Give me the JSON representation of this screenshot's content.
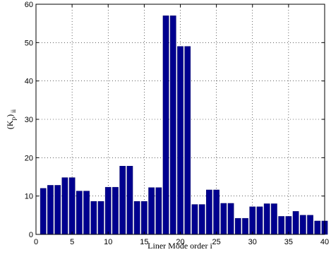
{
  "chart_data": {
    "type": "bar",
    "x": [
      1,
      2,
      3,
      4,
      5,
      6,
      7,
      8,
      9,
      10,
      11,
      12,
      13,
      14,
      15,
      16,
      17,
      18,
      19,
      20,
      21,
      22,
      23,
      24,
      25,
      26,
      27,
      28,
      29,
      30,
      31,
      32,
      33,
      34,
      35,
      36,
      37,
      38,
      39,
      40
    ],
    "values": [
      12,
      12.8,
      12.8,
      14.8,
      14.8,
      11.3,
      11.3,
      8.6,
      8.6,
      12.3,
      12.3,
      17.8,
      17.8,
      8.6,
      8.6,
      12.2,
      12.2,
      57,
      57,
      49,
      49,
      7.8,
      7.8,
      11.6,
      11.6,
      8.1,
      8.1,
      4.2,
      4.2,
      7.2,
      7.2,
      8,
      8,
      4.7,
      4.7,
      6,
      5,
      5,
      3.5,
      3.5
    ],
    "xlabel": "Liner Mode order i",
    "ylabel": "(K_p)_ii",
    "ylabel_display": {
      "base": "(K",
      "sub1": "p",
      "mid": ")",
      "sub2": "ii"
    },
    "xlim": [
      0,
      40
    ],
    "ylim": [
      0,
      60
    ],
    "xticks": [
      0,
      5,
      10,
      15,
      20,
      25,
      30,
      35,
      40
    ],
    "yticks": [
      0,
      10,
      20,
      30,
      40,
      50,
      60
    ],
    "grid": true,
    "bar_color": "#00008f",
    "bar_edge_color": "#000066"
  }
}
